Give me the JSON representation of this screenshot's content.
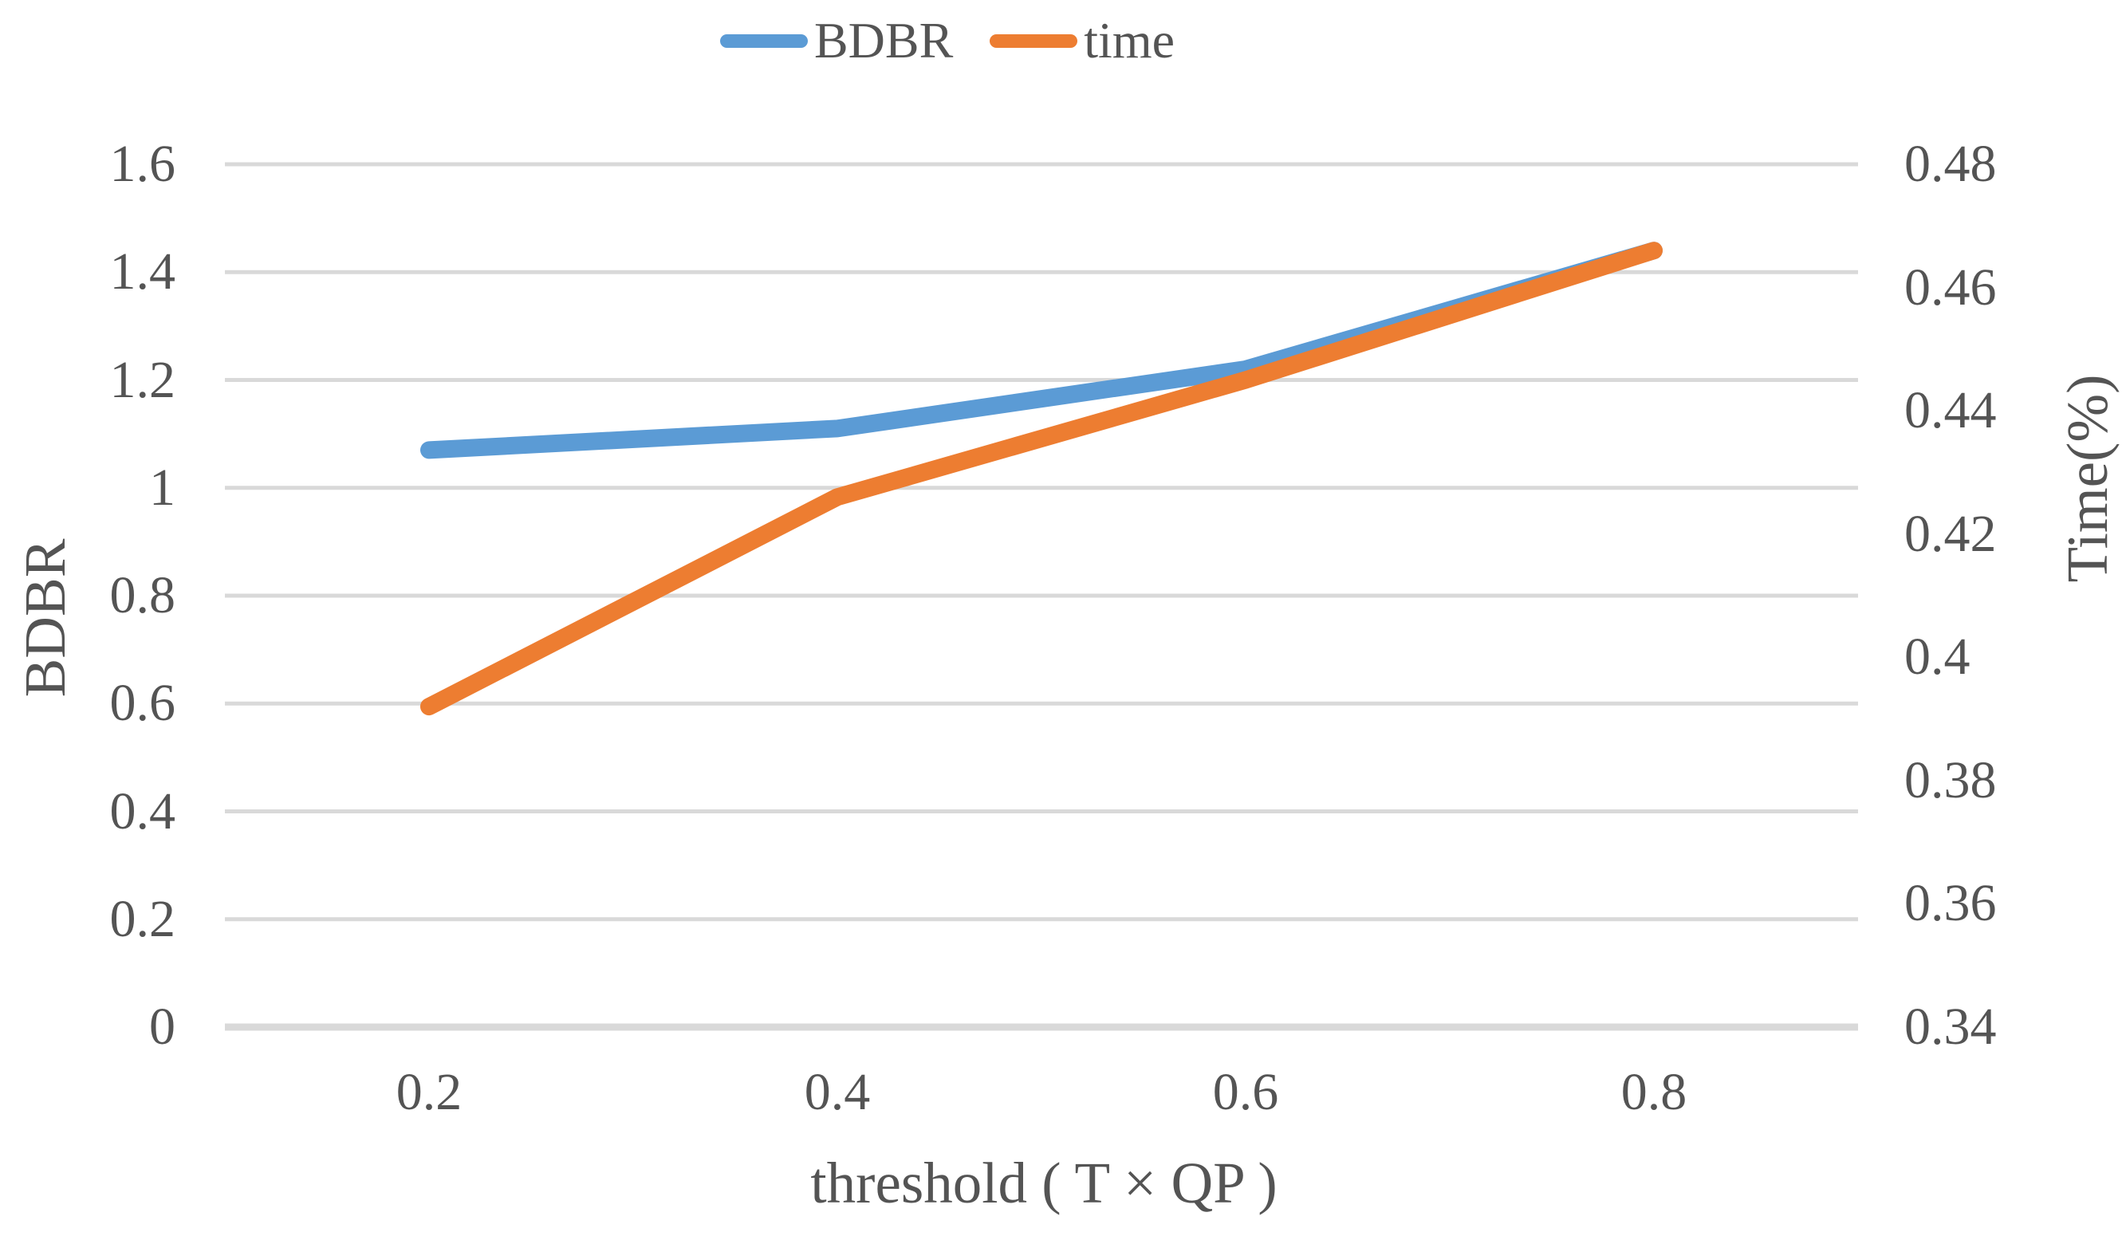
{
  "chart_data": {
    "type": "line",
    "title": "",
    "x": [
      0.2,
      0.4,
      0.6,
      0.8
    ],
    "x_tick_labels": [
      "0.2",
      "0.4",
      "0.6",
      "0.8"
    ],
    "xlabel": "threshold ( T × QP )",
    "left_axis": {
      "label": "BDBR",
      "min": 0,
      "max": 1.6,
      "tick_values": [
        1.6,
        1.4,
        1.2,
        1,
        0.8,
        0.6,
        0.4,
        0.2,
        0
      ],
      "tick_labels": [
        "1.6",
        "1.4",
        "1.2",
        "1",
        "0.8",
        "0.6",
        "0.4",
        "0.2",
        "0"
      ]
    },
    "right_axis": {
      "label": "Time(%)",
      "min": 0.34,
      "max": 0.48,
      "tick_values": [
        0.48,
        0.46,
        0.44,
        0.42,
        0.4,
        0.38,
        0.36,
        0.34
      ],
      "tick_labels": [
        "0.48",
        "0.46",
        "0.44",
        "0.42",
        "0.4",
        "0.38",
        "0.36",
        "0.34"
      ]
    },
    "series": [
      {
        "name": "BDBR",
        "axis": "left",
        "color": "#5B9BD5",
        "values": [
          1.07,
          1.11,
          1.22,
          1.44
        ]
      },
      {
        "name": "time",
        "axis": "right",
        "color": "#ED7D31",
        "values": [
          0.392,
          0.426,
          0.445,
          0.466
        ]
      }
    ],
    "legend": {
      "position": "top",
      "entries": [
        "BDBR",
        "time"
      ]
    },
    "grid": true,
    "gridline_color": "#D9D9D9",
    "axis_line_color": "#D9D9D9",
    "text_color": "#545454"
  }
}
